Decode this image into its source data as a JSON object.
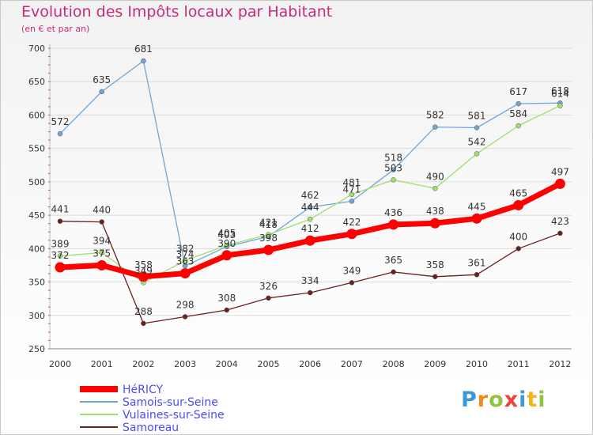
{
  "title": "Evolution des Impôts locaux par Habitant",
  "subtitle": "(en € et par an)",
  "logo": {
    "p": "P",
    "r": "r",
    "o": "o",
    "x": "x",
    "i": "i",
    "t": "t",
    "i2": "i"
  },
  "chart_data": {
    "type": "line",
    "title": "Evolution des Impôts locaux par Habitant",
    "ylabel": "(en € et par an)",
    "xlabel": "",
    "ylim": [
      250,
      700
    ],
    "yticks": [
      250,
      300,
      350,
      400,
      450,
      500,
      550,
      600,
      650,
      700
    ],
    "categories": [
      "2000",
      "2001",
      "2002",
      "2003",
      "2004",
      "2005",
      "2006",
      "2007",
      "2008",
      "2009",
      "2010",
      "2011",
      "2012"
    ],
    "legend_position": "bottom-left",
    "series": [
      {
        "name": "HéRICY",
        "color": "#ff0000",
        "values": [
          372,
          375,
          358,
          363,
          390,
          398,
          412,
          422,
          436,
          438,
          445,
          465,
          497
        ]
      },
      {
        "name": "Samois-sur-Seine",
        "color": "#6fa6d6",
        "values": [
          572,
          635,
          681,
          374,
          403,
          418,
          462,
          471,
          518,
          582,
          581,
          617,
          618
        ]
      },
      {
        "name": "Vulaines-sur-Seine",
        "color": "#9ee06a",
        "values": [
          389,
          394,
          349,
          382,
          405,
          421,
          444,
          481,
          503,
          490,
          542,
          584,
          614
        ]
      },
      {
        "name": "Samoreau",
        "color": "#6b1f1f",
        "values": [
          441,
          440,
          288,
          298,
          308,
          326,
          334,
          349,
          365,
          358,
          361,
          400,
          423
        ]
      }
    ],
    "data_labels": [
      {
        "series": 0,
        "labels": [
          "372",
          "375",
          "358",
          "363",
          "390",
          "398",
          "412",
          "422",
          "436",
          "438",
          "445",
          "465",
          "497"
        ]
      },
      {
        "series": 1,
        "labels": [
          "572",
          "635",
          "681",
          "374",
          "403",
          "418",
          "462",
          "471",
          "518",
          "582",
          "581",
          "617",
          "618"
        ]
      },
      {
        "series": 2,
        "labels": [
          "389",
          "394",
          "349",
          "382",
          "405",
          "421",
          "444",
          "481",
          "503",
          "490",
          "542",
          "584",
          "614"
        ]
      },
      {
        "series": 3,
        "labels": [
          "441",
          "440",
          "288",
          "298",
          "308",
          "326",
          "334",
          "349",
          "365",
          "358",
          "361",
          "400",
          "423"
        ]
      }
    ]
  }
}
